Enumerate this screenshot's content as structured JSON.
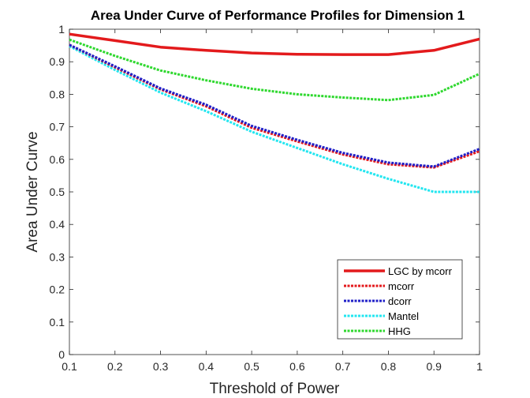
{
  "chart_data": {
    "type": "line",
    "title": "Area Under Curve of Performance Profiles for Dimension 1",
    "xlabel": "Threshold of Power",
    "ylabel": "Area Under Curve",
    "xlim": [
      0.1,
      1
    ],
    "ylim": [
      0,
      1
    ],
    "x_ticks": [
      "0.1",
      "0.2",
      "0.3",
      "0.4",
      "0.5",
      "0.6",
      "0.7",
      "0.8",
      "0.9",
      "1"
    ],
    "y_ticks": [
      "0",
      "0.1",
      "0.2",
      "0.3",
      "0.4",
      "0.5",
      "0.6",
      "0.7",
      "0.8",
      "0.9",
      "1"
    ],
    "grid": false,
    "legend_position": "bottom-right",
    "x": [
      0.1,
      0.2,
      0.3,
      0.4,
      0.5,
      0.6,
      0.7,
      0.8,
      0.9,
      1.0
    ],
    "series": [
      {
        "name": "LGC by mcorr",
        "color": "#e31a1c",
        "style": "solid",
        "values": [
          0.985,
          0.965,
          0.945,
          0.935,
          0.927,
          0.923,
          0.922,
          0.922,
          0.935,
          0.97
        ]
      },
      {
        "name": "mcorr",
        "color": "#e31a1c",
        "style": "dashed",
        "values": [
          0.952,
          0.883,
          0.815,
          0.763,
          0.697,
          0.655,
          0.615,
          0.585,
          0.575,
          0.625
        ]
      },
      {
        "name": "dcorr",
        "color": "#1f1fc8",
        "style": "dashed",
        "values": [
          0.952,
          0.886,
          0.818,
          0.768,
          0.703,
          0.66,
          0.62,
          0.59,
          0.578,
          0.632
        ]
      },
      {
        "name": "Mantel",
        "color": "#22e6f0",
        "style": "dashed",
        "values": [
          0.948,
          0.875,
          0.805,
          0.748,
          0.685,
          0.635,
          0.585,
          0.54,
          0.5,
          0.5
        ]
      },
      {
        "name": "HHG",
        "color": "#2fd82f",
        "style": "dashed",
        "values": [
          0.968,
          0.918,
          0.873,
          0.843,
          0.817,
          0.8,
          0.79,
          0.782,
          0.798,
          0.863
        ]
      }
    ]
  }
}
